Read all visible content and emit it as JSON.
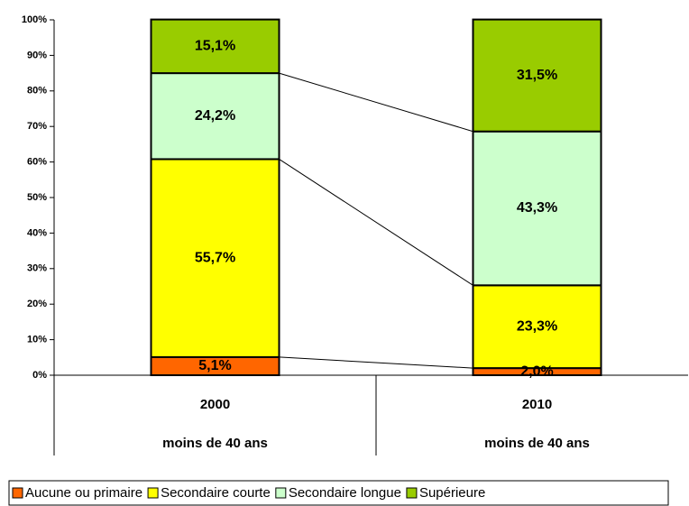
{
  "chart_data": {
    "type": "stacked_bar",
    "categories": [
      "2000",
      "2010"
    ],
    "category_groups": [
      "moins de 40 ans",
      "moins de 40 ans"
    ],
    "series": [
      {
        "name": "Aucune ou primaire",
        "color": "#ff6600",
        "values": [
          5.1,
          2.0
        ],
        "value_labels": [
          "5,1%",
          "2,0%"
        ]
      },
      {
        "name": "Secondaire courte",
        "color": "#ffff00",
        "values": [
          55.7,
          23.3
        ],
        "value_labels": [
          "55,7%",
          "23,3%"
        ]
      },
      {
        "name": "Secondaire longue",
        "color": "#ccffcc",
        "values": [
          24.2,
          43.3
        ],
        "value_labels": [
          "24,2%",
          "43,3%"
        ]
      },
      {
        "name": "Supérieure",
        "color": "#99cc00",
        "values": [
          15.1,
          31.5
        ],
        "value_labels": [
          "15,1%",
          "31,5%"
        ]
      }
    ],
    "ylim": [
      0,
      100
    ],
    "yticks": [
      {
        "value": 0,
        "label": "0%"
      },
      {
        "value": 10,
        "label": "10%"
      },
      {
        "value": 20,
        "label": "20%"
      },
      {
        "value": 30,
        "label": "30%"
      },
      {
        "value": 40,
        "label": "40%"
      },
      {
        "value": 50,
        "label": "50%"
      },
      {
        "value": 60,
        "label": "60%"
      },
      {
        "value": 70,
        "label": "70%"
      },
      {
        "value": 80,
        "label": "80%"
      },
      {
        "value": 90,
        "label": "90%"
      },
      {
        "value": 100,
        "label": "100%"
      }
    ],
    "series_lines": true
  }
}
